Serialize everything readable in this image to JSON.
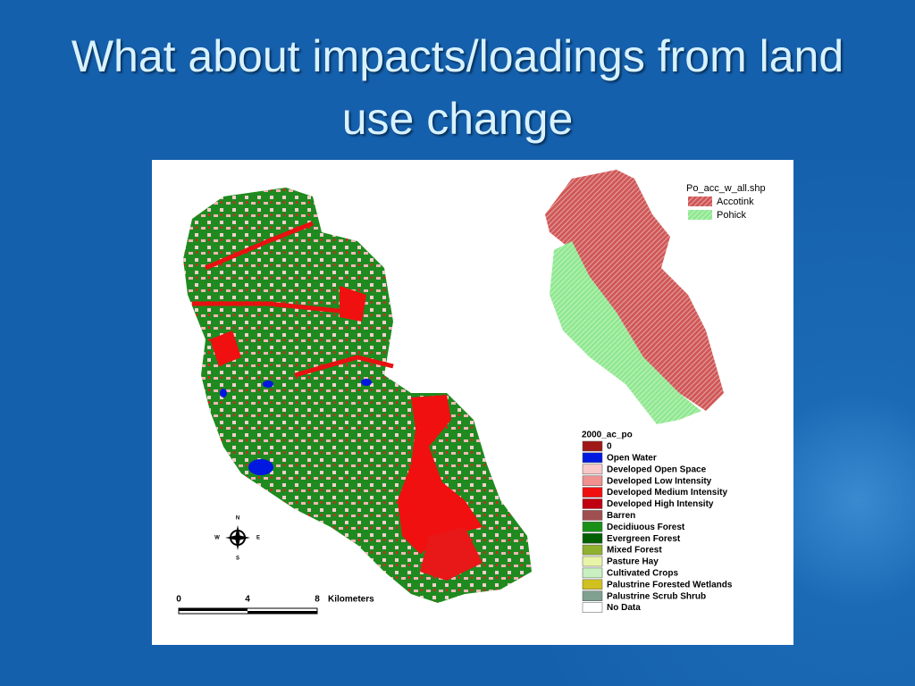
{
  "title": "What about impacts/loadings from land use change",
  "inset_legend": {
    "title": "Po_acc_w_all.shp",
    "items": [
      {
        "label": "Accotink",
        "color": "#d05858"
      },
      {
        "label": "Pohick",
        "color": "#90e890"
      }
    ]
  },
  "legend": {
    "title": "2000_ac_po",
    "items": [
      {
        "label": "0",
        "color": "#a01818"
      },
      {
        "label": "Open Water",
        "color": "#0018e0"
      },
      {
        "label": "Developed Open Space",
        "color": "#f8c8c8"
      },
      {
        "label": "Developed Low Intensity",
        "color": "#f09090"
      },
      {
        "label": "Developed Medium Intensity",
        "color": "#f01010"
      },
      {
        "label": "Developed High Intensity",
        "color": "#c00010"
      },
      {
        "label": "Barren",
        "color": "#a05050"
      },
      {
        "label": "Decidiuous Forest",
        "color": "#189018"
      },
      {
        "label": "Evergreen Forest",
        "color": "#006000"
      },
      {
        "label": "Mixed Forest",
        "color": "#90b030"
      },
      {
        "label": "Pasture Hay",
        "color": "#e8f4a8"
      },
      {
        "label": "Cultivated Crops",
        "color": "#c8f0c0"
      },
      {
        "label": "Palustrine Forested Wetlands",
        "color": "#d0c020"
      },
      {
        "label": "Palustrine Scrub Shrub",
        "color": "#80a090"
      },
      {
        "label": "No Data",
        "color": "#ffffff"
      }
    ]
  },
  "scale_bar": {
    "labels": [
      "0",
      "4",
      "8"
    ],
    "unit": "Kilometers"
  },
  "compass": {
    "n": "N",
    "s": "S",
    "e": "E",
    "w": "W"
  }
}
